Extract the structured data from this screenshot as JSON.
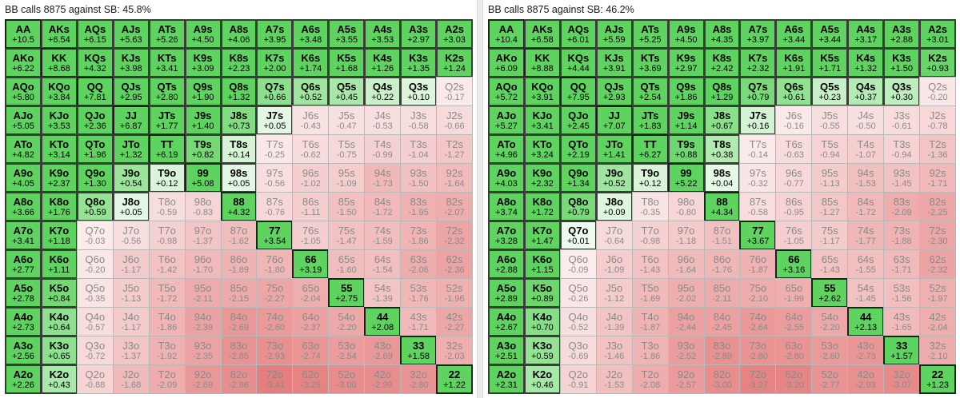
{
  "hands": [
    [
      "AA",
      "AKs",
      "AQs",
      "AJs",
      "ATs",
      "A9s",
      "A8s",
      "A7s",
      "A6s",
      "A5s",
      "A4s",
      "A3s",
      "A2s"
    ],
    [
      "AKo",
      "KK",
      "KQs",
      "KJs",
      "KTs",
      "K9s",
      "K8s",
      "K7s",
      "K6s",
      "K5s",
      "K4s",
      "K3s",
      "K2s"
    ],
    [
      "AQo",
      "KQo",
      "QQ",
      "QJs",
      "QTs",
      "Q9s",
      "Q8s",
      "Q7s",
      "Q6s",
      "Q5s",
      "Q4s",
      "Q3s",
      "Q2s"
    ],
    [
      "AJo",
      "KJo",
      "QJo",
      "JJ",
      "JTs",
      "J9s",
      "J8s",
      "J7s",
      "J6s",
      "J5s",
      "J4s",
      "J3s",
      "J2s"
    ],
    [
      "ATo",
      "KTo",
      "QTo",
      "JTo",
      "TT",
      "T9s",
      "T8s",
      "T7s",
      "T6s",
      "T5s",
      "T4s",
      "T3s",
      "T2s"
    ],
    [
      "A9o",
      "K9o",
      "Q9o",
      "J9o",
      "T9o",
      "99",
      "98s",
      "97s",
      "96s",
      "95s",
      "94s",
      "93s",
      "92s"
    ],
    [
      "A8o",
      "K8o",
      "Q8o",
      "J8o",
      "T8o",
      "98o",
      "88",
      "87s",
      "86s",
      "85s",
      "84s",
      "83s",
      "82s"
    ],
    [
      "A7o",
      "K7o",
      "Q7o",
      "J7o",
      "T7o",
      "97o",
      "87o",
      "77",
      "76s",
      "75s",
      "74s",
      "73s",
      "72s"
    ],
    [
      "A6o",
      "K6o",
      "Q6o",
      "J6o",
      "T6o",
      "96o",
      "86o",
      "76o",
      "66",
      "65s",
      "64s",
      "63s",
      "62s"
    ],
    [
      "A5o",
      "K5o",
      "Q5o",
      "J5o",
      "T5o",
      "95o",
      "85o",
      "75o",
      "65o",
      "55",
      "54s",
      "53s",
      "52s"
    ],
    [
      "A4o",
      "K4o",
      "Q4o",
      "J4o",
      "T4o",
      "94o",
      "84o",
      "74o",
      "64o",
      "54o",
      "44",
      "43s",
      "42s"
    ],
    [
      "A3o",
      "K3o",
      "Q3o",
      "J3o",
      "T3o",
      "93o",
      "83o",
      "73o",
      "63o",
      "53o",
      "43o",
      "33",
      "32s"
    ],
    [
      "A2o",
      "K2o",
      "Q2o",
      "J2o",
      "T2o",
      "92o",
      "82o",
      "72o",
      "62o",
      "52o",
      "42o",
      "32o",
      "22"
    ]
  ],
  "colors": {
    "pos_strong": "#5fd35f",
    "pos_light": "#eefaee",
    "neutral": "#ffffff",
    "neg_light": "#fbeded",
    "neg_strong": "#e57e7e"
  },
  "panels": [
    {
      "title": "BB calls 8875 against SB: 45.8%",
      "ev": [
        [
          "+10.5",
          "+6.54",
          "+6.15",
          "+5.63",
          "+5.26",
          "+4.50",
          "+4.06",
          "+3.95",
          "+3.48",
          "+3.55",
          "+3.53",
          "+2.97",
          "+3.03"
        ],
        [
          "+6.22",
          "+8.68",
          "+4.32",
          "+3.98",
          "+3.41",
          "+3.09",
          "+2.23",
          "+2.00",
          "+1.74",
          "+1.68",
          "+1.26",
          "+1.35",
          "+1.24"
        ],
        [
          "+5.80",
          "+3.84",
          "+7.81",
          "+2.95",
          "+2.80",
          "+1.90",
          "+1.32",
          "+0.66",
          "+0.52",
          "+0.45",
          "+0.22",
          "+0.10",
          "-0.17"
        ],
        [
          "+5.05",
          "+3.53",
          "+2.36",
          "+6.87",
          "+1.77",
          "+1.40",
          "+0.73",
          "+0.05",
          "-0.43",
          "-0.47",
          "-0.53",
          "-0.58",
          "-0.66"
        ],
        [
          "+4.82",
          "+3.14",
          "+1.96",
          "+1.32",
          "+6.19",
          "+0.82",
          "+0.14",
          "-0.25",
          "-0.62",
          "-0.75",
          "-0.99",
          "-1.04",
          "-1.27"
        ],
        [
          "+4.05",
          "+2.37",
          "+1.30",
          "+0.54",
          "+0.12",
          "+5.08",
          "+0.05",
          "-0.56",
          "-1.02",
          "-1.09",
          "-1.73",
          "-1.50",
          "-1.64"
        ],
        [
          "+3.66",
          "+1.76",
          "+0.59",
          "+0.05",
          "-0.59",
          "-0.83",
          "+4.32",
          "-0.76",
          "-1.11",
          "-1.50",
          "-1.72",
          "-1.95",
          "-2.07"
        ],
        [
          "+3.41",
          "+1.18",
          "-0.03",
          "-0.56",
          "-0.98",
          "-1.37",
          "-1.62",
          "+3.54",
          "-1.05",
          "-1.47",
          "-1.59",
          "-1.86",
          "-2.32"
        ],
        [
          "+2.77",
          "+1.11",
          "-0.20",
          "-1.17",
          "-1.42",
          "-1.70",
          "-1.89",
          "-1.80",
          "+3.19",
          "-1.60",
          "-1.54",
          "-2.06",
          "-2.36"
        ],
        [
          "+2.78",
          "+0.84",
          "-0.35",
          "-1.13",
          "-1.72",
          "-2.11",
          "-2.15",
          "-2.27",
          "-2.04",
          "+2.75",
          "-1.39",
          "-1.76",
          "-1.96"
        ],
        [
          "+2.73",
          "+0.64",
          "-0.57",
          "-1.17",
          "-1.86",
          "-2.39",
          "-2.69",
          "-2.60",
          "-2.37",
          "-2.20",
          "+2.08",
          "-1.71",
          "-2.27"
        ],
        [
          "+2.56",
          "+0.65",
          "-0.72",
          "-1.37",
          "-1.92",
          "-2.35",
          "-2.85",
          "-2.93",
          "-2.74",
          "-2.54",
          "-2.69",
          "+1.58",
          "-2.03"
        ],
        [
          "+2.26",
          "+0.43",
          "-0.88",
          "-1.68",
          "-2.09",
          "-2.69",
          "-2.96",
          "-3.41",
          "-3.25",
          "-3.00",
          "-2.99",
          "-2.80",
          "+1.22"
        ]
      ]
    },
    {
      "title": "BB calls 8875 against SB: 46.2%",
      "ev": [
        [
          "+10.4",
          "+6.58",
          "+6.01",
          "+5.59",
          "+5.25",
          "+4.50",
          "+4.35",
          "+3.97",
          "+3.44",
          "+3.44",
          "+3.17",
          "+2.88",
          "+3.01"
        ],
        [
          "+6.09",
          "+8.88",
          "+4.44",
          "+3.91",
          "+3.69",
          "+2.97",
          "+2.42",
          "+2.32",
          "+1.91",
          "+1.71",
          "+1.32",
          "+1.50",
          "+0.93"
        ],
        [
          "+5.72",
          "+3.91",
          "+7.95",
          "+2.93",
          "+2.54",
          "+1.86",
          "+1.29",
          "+0.79",
          "+0.61",
          "+0.23",
          "+0.37",
          "+0.30",
          "-0.20"
        ],
        [
          "+5.27",
          "+3.41",
          "+2.45",
          "+7.07",
          "+1.83",
          "+1.14",
          "+0.67",
          "+0.16",
          "-0.16",
          "-0.55",
          "-0.50",
          "-0.61",
          "-0.78"
        ],
        [
          "+4.96",
          "+3.24",
          "+2.19",
          "+1.41",
          "+6.27",
          "+0.88",
          "+0.38",
          "-0.14",
          "-0.63",
          "-0.94",
          "-1.07",
          "-0.94",
          "-1.36"
        ],
        [
          "+4.03",
          "+2.32",
          "+1.34",
          "+0.52",
          "+0.12",
          "+5.22",
          "+0.04",
          "-0.32",
          "-0.77",
          "-1.13",
          "-1.53",
          "-1.45",
          "-1.71"
        ],
        [
          "+3.74",
          "+1.72",
          "+0.79",
          "+0.09",
          "-0.35",
          "-0.80",
          "+4.34",
          "-0.58",
          "-0.95",
          "-1.27",
          "-1.72",
          "-2.09",
          "-2.25"
        ],
        [
          "+3.28",
          "+1.47",
          "+0.01",
          "-0.64",
          "-0.98",
          "-1.18",
          "-1.51",
          "+3.67",
          "-1.05",
          "-1.17",
          "-1.77",
          "-1.88",
          "-2.30"
        ],
        [
          "+2.88",
          "+1.15",
          "-0.09",
          "-1.09",
          "-1.43",
          "-1.64",
          "-1.76",
          "-1.87",
          "+3.16",
          "-1.43",
          "-1.55",
          "-1.71",
          "-2.32"
        ],
        [
          "+2.89",
          "+0.89",
          "-0.26",
          "-1.12",
          "-1.69",
          "-2.02",
          "-2.11",
          "-2.10",
          "-1.99",
          "+2.62",
          "-1.45",
          "-1.56",
          "-1.97"
        ],
        [
          "+2.67",
          "+0.70",
          "-0.52",
          "-1.39",
          "-1.87",
          "-2.44",
          "-2.45",
          "-2.64",
          "-2.55",
          "-2.20",
          "+2.13",
          "-1.65",
          "-2.04"
        ],
        [
          "+2.51",
          "+0.59",
          "-0.69",
          "-1.46",
          "-1.86",
          "-2.52",
          "-2.89",
          "-2.80",
          "-2.80",
          "-2.60",
          "-2.73",
          "+1.57",
          "-2.10"
        ],
        [
          "+2.31",
          "+0.46",
          "-0.91",
          "-1.53",
          "-2.08",
          "-2.57",
          "-3.00",
          "-3.27",
          "-3.20",
          "-2.77",
          "-2.93",
          "-3.07",
          "+1.23"
        ]
      ]
    }
  ]
}
